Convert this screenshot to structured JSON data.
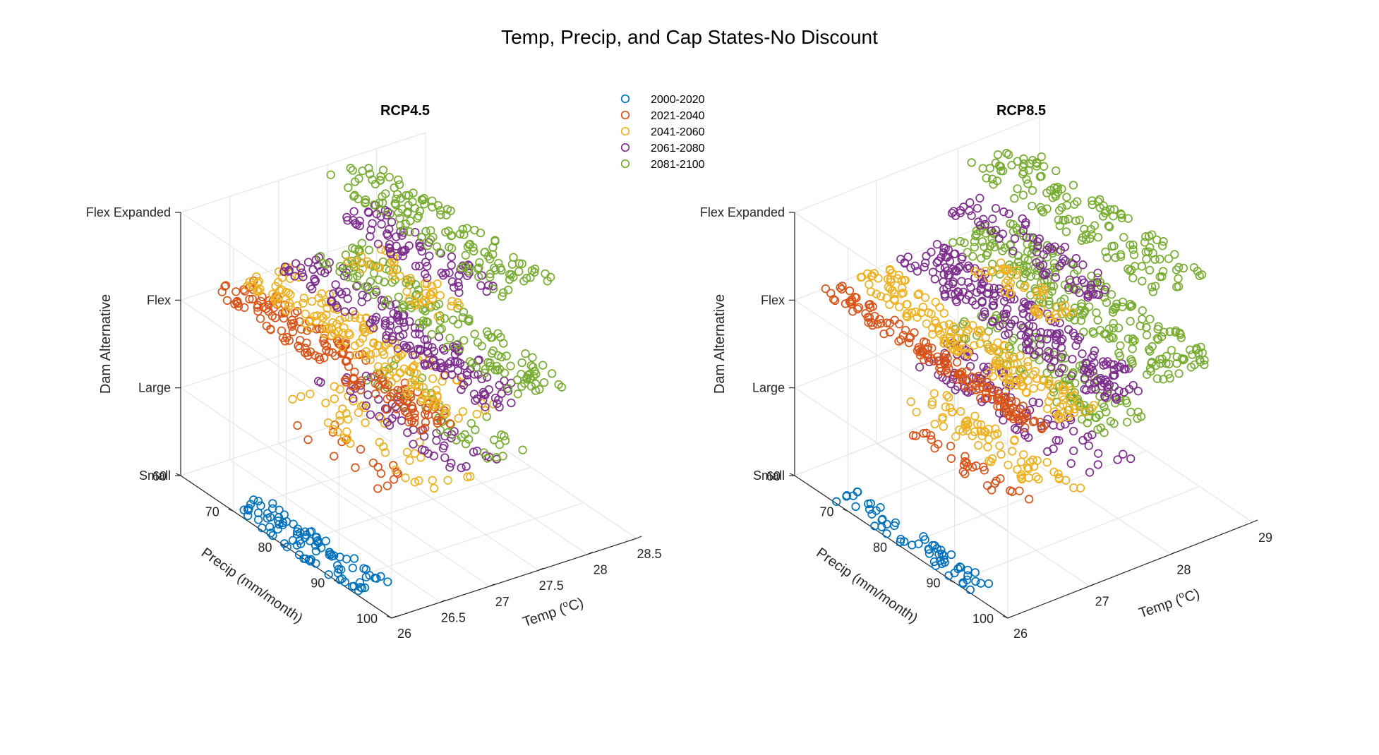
{
  "figure_title": "Temp, Precip, and Cap States-No Discount",
  "colors": {
    "2000-2020": "#0072BD",
    "2021-2040": "#D95319",
    "2041-2060": "#EDB120",
    "2061-2080": "#7E2F8E",
    "2081-2100": "#77AC30"
  },
  "legend": [
    "2000-2020",
    "2021-2040",
    "2041-2060",
    "2061-2080",
    "2081-2100"
  ],
  "chart_data": [
    {
      "type": "scatter",
      "title": "RCP4.5",
      "xlabel": "Temp (°C)",
      "ylabel": "Precip (mm/month)",
      "zlabel": "Dam Alternative",
      "xlim": [
        26,
        28.5
      ],
      "ylim": [
        60,
        100
      ],
      "xticks": [
        "26",
        "26.5",
        "27",
        "27.5",
        "28",
        "28.5"
      ],
      "yticks": [
        "60",
        "70",
        "80",
        "90",
        "100"
      ],
      "zticks": [
        "Small",
        "Large",
        "Flex",
        "Flex Expanded"
      ],
      "grid": true,
      "clusters": [
        {
          "period": "2000-2020",
          "z": "Small",
          "temp": [
            26.0,
            26.35
          ],
          "precip": [
            69,
            93
          ],
          "count": 95
        },
        {
          "period": "2021-2040",
          "z": "Large",
          "temp": [
            26.3,
            26.7
          ],
          "precip": [
            73,
            95
          ],
          "count": 18
        },
        {
          "period": "2041-2060",
          "z": "Large",
          "temp": [
            26.6,
            27.1
          ],
          "precip": [
            69,
            95
          ],
          "count": 45
        },
        {
          "period": "2061-2080",
          "z": "Large",
          "temp": [
            27.0,
            27.45
          ],
          "precip": [
            67,
            93
          ],
          "count": 55
        },
        {
          "period": "2081-2100",
          "z": "Large",
          "temp": [
            27.35,
            27.85
          ],
          "precip": [
            65,
            93
          ],
          "count": 45
        },
        {
          "period": "2021-2040",
          "z": "Flex",
          "temp": [
            26.3,
            26.7
          ],
          "precip": [
            60,
            100
          ],
          "count": 170
        },
        {
          "period": "2041-2060",
          "z": "Flex",
          "temp": [
            26.6,
            27.1
          ],
          "precip": [
            60,
            100
          ],
          "count": 170
        },
        {
          "period": "2061-2080",
          "z": "Flex",
          "temp": [
            27.0,
            27.45
          ],
          "precip": [
            60,
            100
          ],
          "count": 165
        },
        {
          "period": "2081-2100",
          "z": "Flex",
          "temp": [
            27.35,
            27.85
          ],
          "precip": [
            60,
            100
          ],
          "count": 150
        },
        {
          "period": "2041-2060",
          "z": "Flex Expanded",
          "temp": [
            26.65,
            27.05
          ],
          "precip": [
            78,
            96
          ],
          "count": 45
        },
        {
          "period": "2061-2080",
          "z": "Flex Expanded",
          "temp": [
            27.0,
            27.45
          ],
          "precip": [
            70,
            95
          ],
          "count": 80
        },
        {
          "period": "2081-2100",
          "z": "Flex Expanded",
          "temp": [
            27.35,
            27.9
          ],
          "precip": [
            62,
            96
          ],
          "count": 140
        }
      ]
    },
    {
      "type": "scatter",
      "title": "RCP8.5",
      "xlabel": "Temp (°C)",
      "ylabel": "Precip (mm/month)",
      "zlabel": "Dam Alternative",
      "xlim": [
        26,
        29
      ],
      "ylim": [
        60,
        100
      ],
      "xticks": [
        "26",
        "27",
        "28",
        "29"
      ],
      "yticks": [
        "60",
        "70",
        "80",
        "90",
        "100"
      ],
      "zticks": [
        "Small",
        "Large",
        "Flex",
        "Flex Expanded"
      ],
      "grid": true,
      "clusters": [
        {
          "period": "2000-2020",
          "z": "Small",
          "temp": [
            26.0,
            26.3
          ],
          "precip": [
            67,
            93
          ],
          "count": 60
        },
        {
          "period": "2021-2040",
          "z": "Large",
          "temp": [
            26.3,
            26.55
          ],
          "precip": [
            76,
            96
          ],
          "count": 30
        },
        {
          "period": "2041-2060",
          "z": "Large",
          "temp": [
            26.65,
            27.1
          ],
          "precip": [
            70,
            98
          ],
          "count": 75
        },
        {
          "period": "2061-2080",
          "z": "Large",
          "temp": [
            27.2,
            27.8
          ],
          "precip": [
            62,
            96
          ],
          "count": 100
        },
        {
          "period": "2081-2100",
          "z": "Large",
          "temp": [
            27.85,
            28.5
          ],
          "precip": [
            60,
            90
          ],
          "count": 110
        },
        {
          "period": "2021-2040",
          "z": "Flex",
          "temp": [
            26.3,
            26.55
          ],
          "precip": [
            60,
            100
          ],
          "count": 150
        },
        {
          "period": "2041-2060",
          "z": "Flex",
          "temp": [
            26.65,
            27.1
          ],
          "precip": [
            60,
            100
          ],
          "count": 185
        },
        {
          "period": "2061-2080",
          "z": "Flex",
          "temp": [
            27.2,
            27.8
          ],
          "precip": [
            60,
            100
          ],
          "count": 240
        },
        {
          "period": "2081-2100",
          "z": "Flex",
          "temp": [
            27.85,
            28.6
          ],
          "precip": [
            60,
            100
          ],
          "count": 240
        },
        {
          "period": "2041-2060",
          "z": "Flex Expanded",
          "temp": [
            26.7,
            27.05
          ],
          "precip": [
            82,
            97
          ],
          "count": 45
        },
        {
          "period": "2061-2080",
          "z": "Flex Expanded",
          "temp": [
            27.2,
            27.7
          ],
          "precip": [
            70,
            96
          ],
          "count": 75
        },
        {
          "period": "2081-2100",
          "z": "Flex Expanded",
          "temp": [
            27.85,
            28.55
          ],
          "precip": [
            62,
            100
          ],
          "count": 150
        }
      ]
    }
  ]
}
